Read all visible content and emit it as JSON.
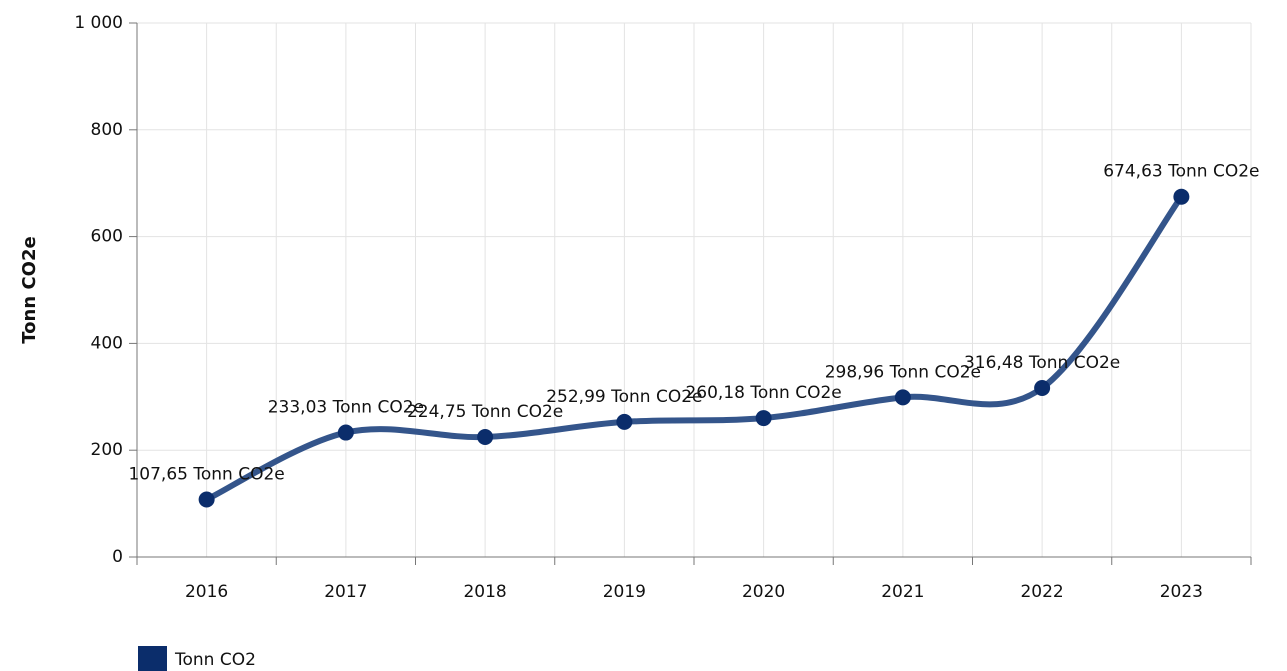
{
  "chart_data": {
    "type": "line",
    "y_label": "Tonn CO2e",
    "categories": [
      "2016",
      "2017",
      "2018",
      "2019",
      "2020",
      "2021",
      "2022",
      "2023"
    ],
    "series": [
      {
        "name": "Tonn CO2",
        "color": "#34558b",
        "marker_color": "#0b2d6b",
        "values": [
          107.65,
          233.03,
          224.75,
          252.99,
          260.18,
          298.96,
          316.48,
          674.63
        ],
        "value_labels": [
          "107,65 Tonn CO2e",
          "233,03 Tonn CO2e",
          "224,75 Tonn CO2e",
          "252,99 Tonn CO2e",
          "260,18 Tonn CO2e",
          "298,96 Tonn CO2e",
          "316,48 Tonn CO2e",
          "674,63 Tonn CO2e"
        ]
      }
    ],
    "ylim": [
      0,
      1000
    ],
    "yticks": [
      0,
      200,
      400,
      600,
      800,
      {
        "value": 1000,
        "label": "1 000"
      }
    ],
    "grid": true,
    "smooth": true,
    "legend": "bottom-left"
  }
}
